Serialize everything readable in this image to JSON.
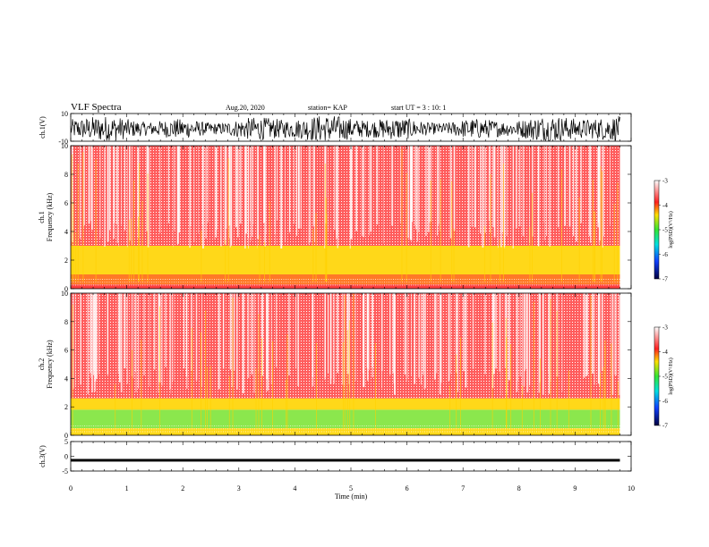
{
  "header": {
    "title": "VLF Spectra",
    "date": "Aug.20, 2020",
    "station": "station= KAP",
    "start": "start  UT =   3 : 10: 1"
  },
  "colors": {
    "spectrogram_low": "#ffffff",
    "spectrogram_mid": "#ff1a1a",
    "spectrogram_band": "#ffd400",
    "spectrogram_green": "#33e633",
    "trace": "#000000"
  },
  "chart_data": [
    {
      "type": "line",
      "panel": "ch1-waveform",
      "ylabel": "ch.1(V)",
      "yticks": [
        "10",
        "-10"
      ],
      "ylim": [
        -10,
        10
      ],
      "xlim": [
        0,
        10
      ],
      "note_series": "dense broadband noise waveform, amplitude mostly within about -8 to +9 V, data ending near 9.8 min"
    },
    {
      "type": "heatmap",
      "panel": "ch1-spectrogram",
      "ylabel": "ch.1\nFrequency (kHz)",
      "yticks": [
        "0",
        "2",
        "4",
        "6",
        "8",
        "10"
      ],
      "ylim": [
        0,
        10
      ],
      "xlim": [
        0,
        10
      ],
      "colorbar": {
        "label": "log(PSD)(V²/Hz)",
        "ticks": [
          "-3",
          "-4",
          "-5",
          "-6",
          "-7"
        ],
        "range": [
          -7,
          -3
        ]
      },
      "bands": [
        {
          "fmin": 0.0,
          "fmax": 0.3,
          "level": -3.6
        },
        {
          "fmin": 0.3,
          "fmax": 1.0,
          "level": -4.0
        },
        {
          "fmin": 1.0,
          "fmax": 3.0,
          "level": -4.3
        },
        {
          "fmin": 3.0,
          "fmax": 10.0,
          "level": -3.8
        }
      ]
    },
    {
      "type": "heatmap",
      "panel": "ch2-spectrogram",
      "ylabel": "ch.2\nFrequency (kHz)",
      "yticks": [
        "0",
        "2",
        "4",
        "6",
        "8",
        "10"
      ],
      "ylim": [
        0,
        10
      ],
      "xlim": [
        0,
        10
      ],
      "colorbar": {
        "label": "log(PSD)(V²/Hz)",
        "ticks": [
          "-3",
          "-4",
          "-5",
          "-6",
          "-7"
        ],
        "range": [
          -7,
          -3
        ]
      },
      "bands": [
        {
          "fmin": 0.0,
          "fmax": 0.5,
          "level": -4.2
        },
        {
          "fmin": 0.5,
          "fmax": 1.8,
          "level": -4.9
        },
        {
          "fmin": 1.8,
          "fmax": 2.6,
          "level": -4.3
        },
        {
          "fmin": 2.6,
          "fmax": 10.0,
          "level": -3.8
        }
      ]
    },
    {
      "type": "line",
      "panel": "ch3-waveform",
      "ylabel": "ch.3(V)",
      "yticks": [
        "5",
        "0",
        "-5"
      ],
      "ylim": [
        -5,
        5
      ],
      "xlim": [
        0,
        10
      ],
      "xlabel": "Time (min)",
      "xticks": [
        "0",
        "1",
        "2",
        "3",
        "4",
        "5",
        "6",
        "7",
        "8",
        "9",
        "10"
      ],
      "note_series": "flat narrow band centred near -1.3 V"
    }
  ]
}
